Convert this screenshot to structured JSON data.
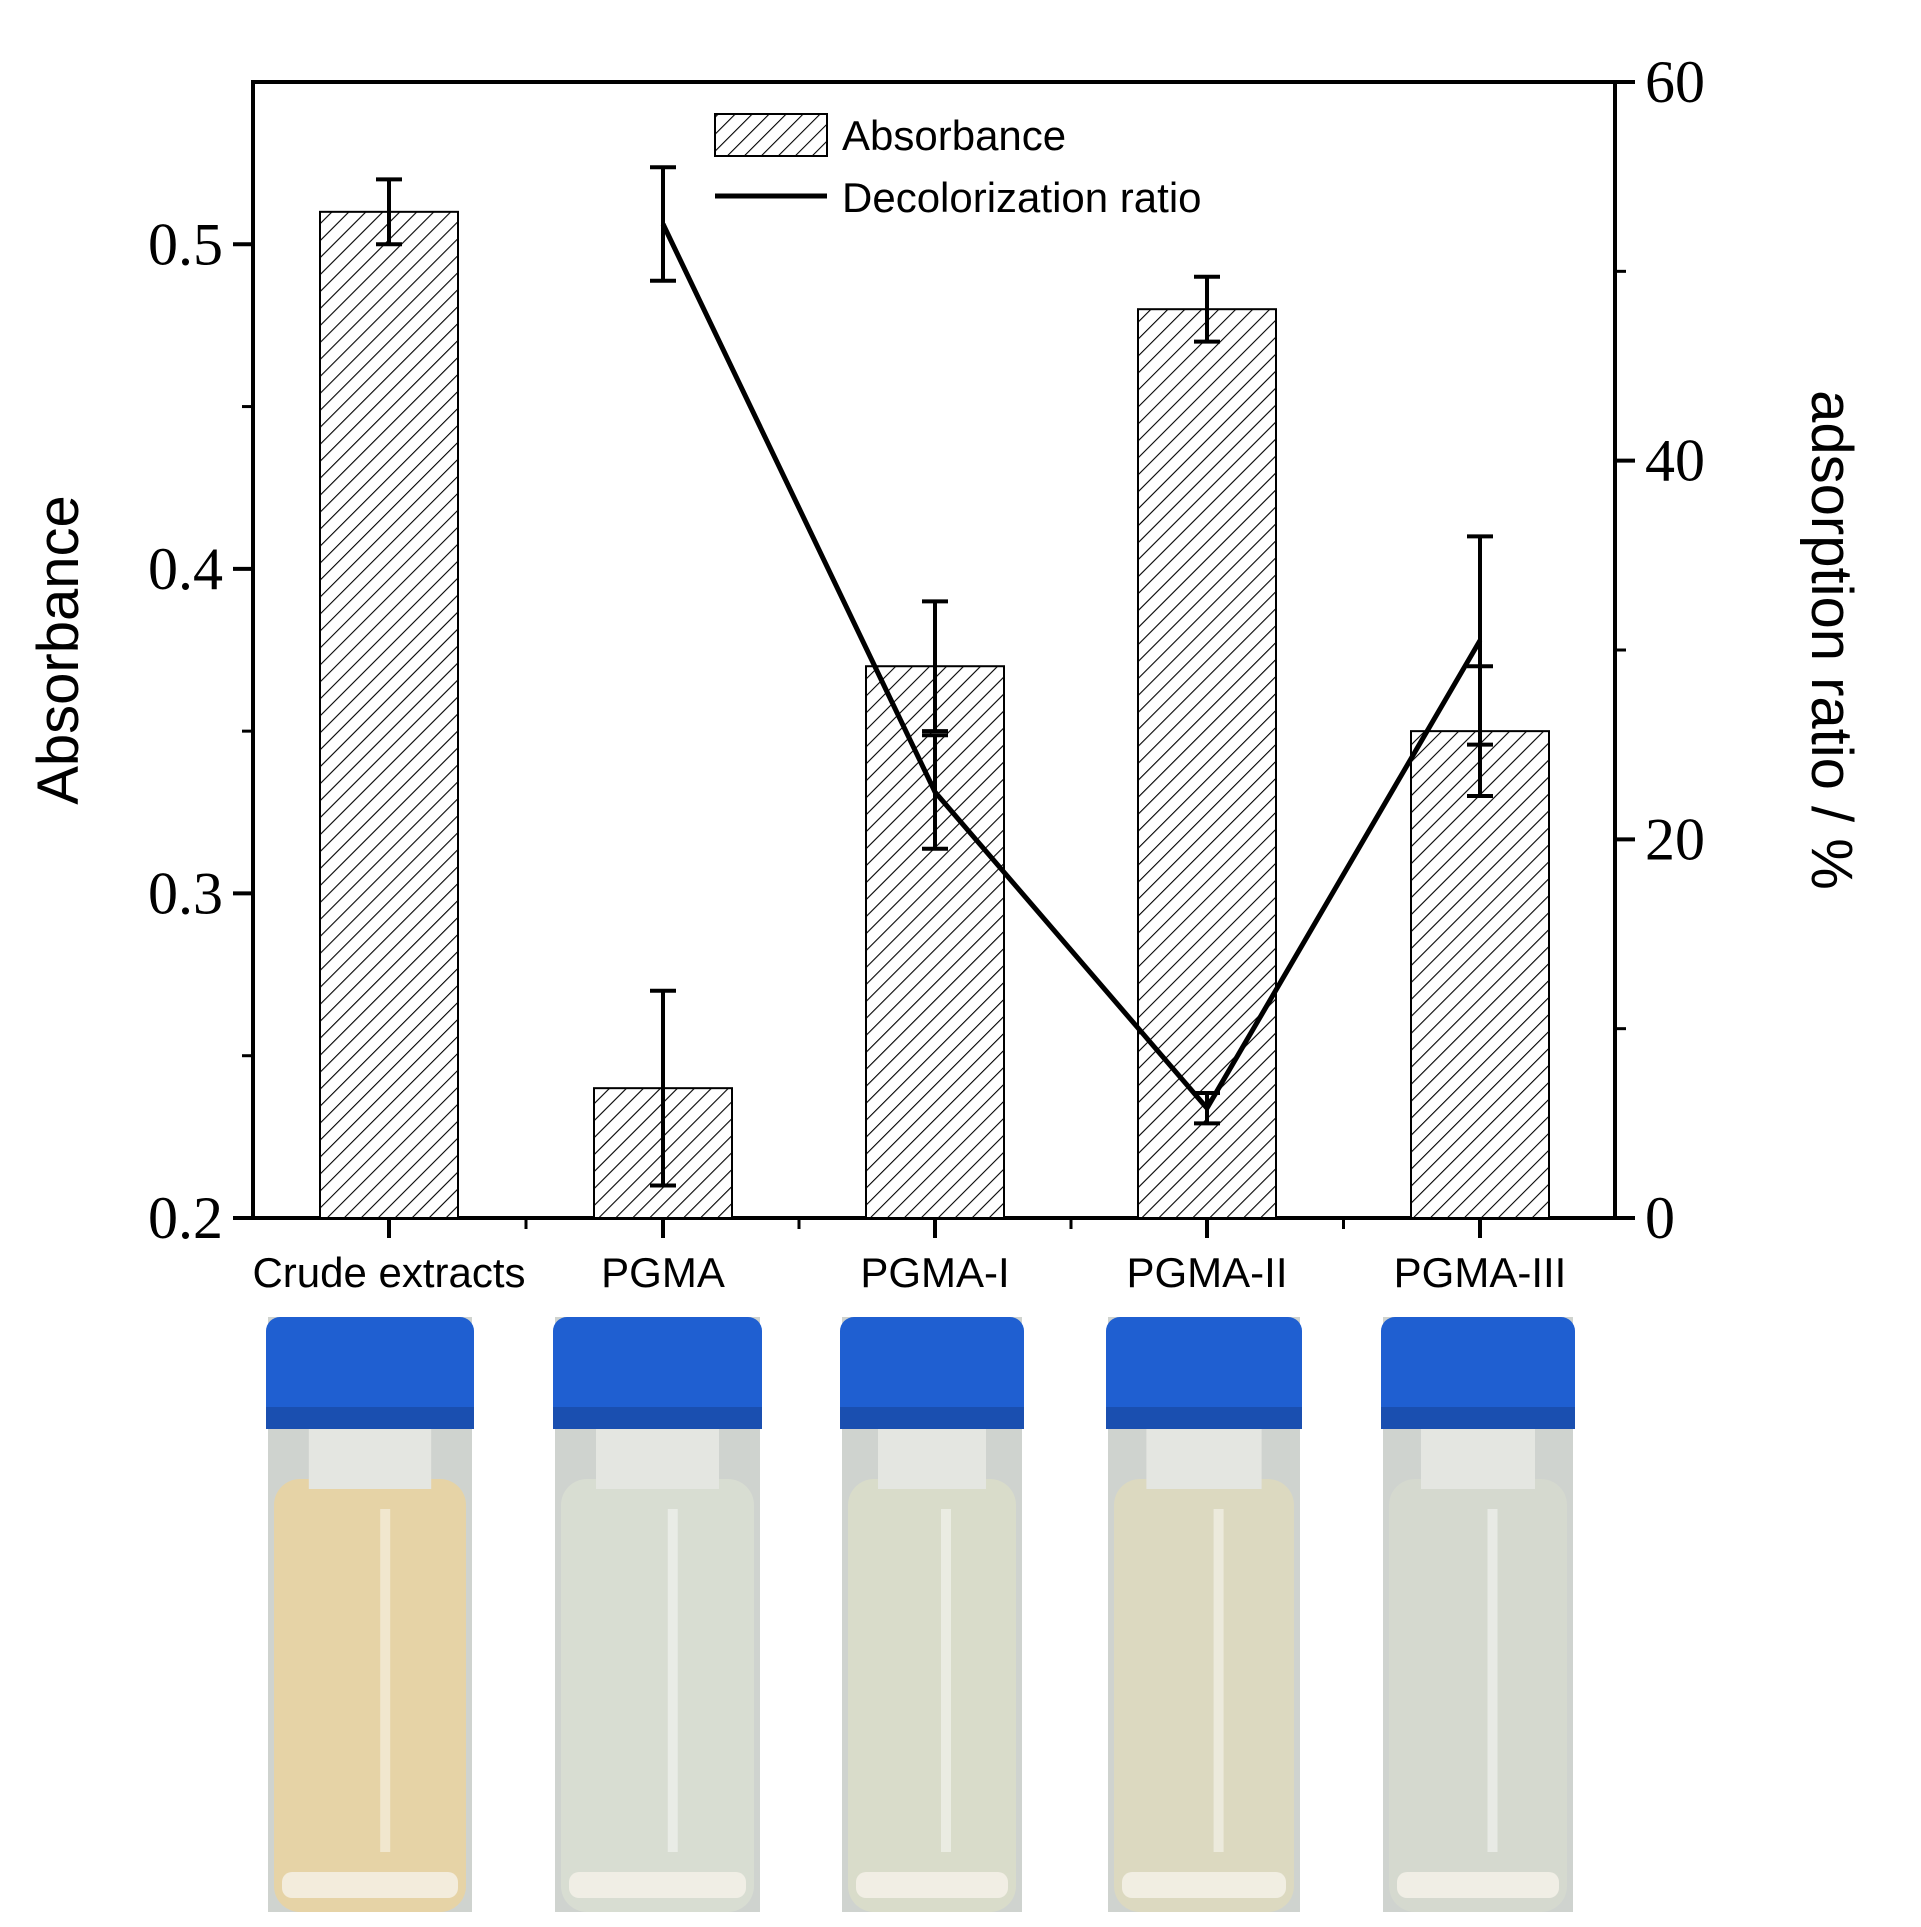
{
  "chart_data": {
    "type": "bar",
    "categories": [
      "Crude extracts",
      "PGMA",
      "PGMA-I",
      "PGMA-II",
      "PGMA-III"
    ],
    "series": [
      {
        "name": "Absorbance",
        "kind": "bar",
        "axis": "left",
        "values": [
          0.51,
          0.24,
          0.37,
          0.48,
          0.35
        ],
        "errors": [
          0.01,
          0.03,
          0.02,
          0.01,
          0.02
        ]
      },
      {
        "name": "Decolorization ratio",
        "kind": "line",
        "axis": "right",
        "values": [
          null,
          52.5,
          22.5,
          5.8,
          30.5
        ],
        "errors": [
          null,
          3.0,
          3.0,
          0.8,
          5.5
        ]
      }
    ],
    "ylabel": "Absorbance",
    "ylabel_right": "adsorption ratio / %",
    "ylim": [
      0.2,
      0.55
    ],
    "ylim_right": [
      0,
      60
    ],
    "yticks": [
      "0.2",
      "0.3",
      "0.4",
      "0.5"
    ],
    "yticks_right": [
      "0",
      "20",
      "40",
      "60"
    ],
    "legend_position": "top-center",
    "grid": false
  },
  "photos": {
    "description_icons": [
      "vial-crude-extracts",
      "vial-pgma",
      "vial-pgma-i",
      "vial-pgma-ii",
      "vial-pgma-iii"
    ],
    "cap_color": "#1f5fd1",
    "liquid_colors": [
      "#e6d3a6",
      "#d8ddd2",
      "#d9dcca",
      "#dcd9c0",
      "#d5d9cf"
    ]
  }
}
